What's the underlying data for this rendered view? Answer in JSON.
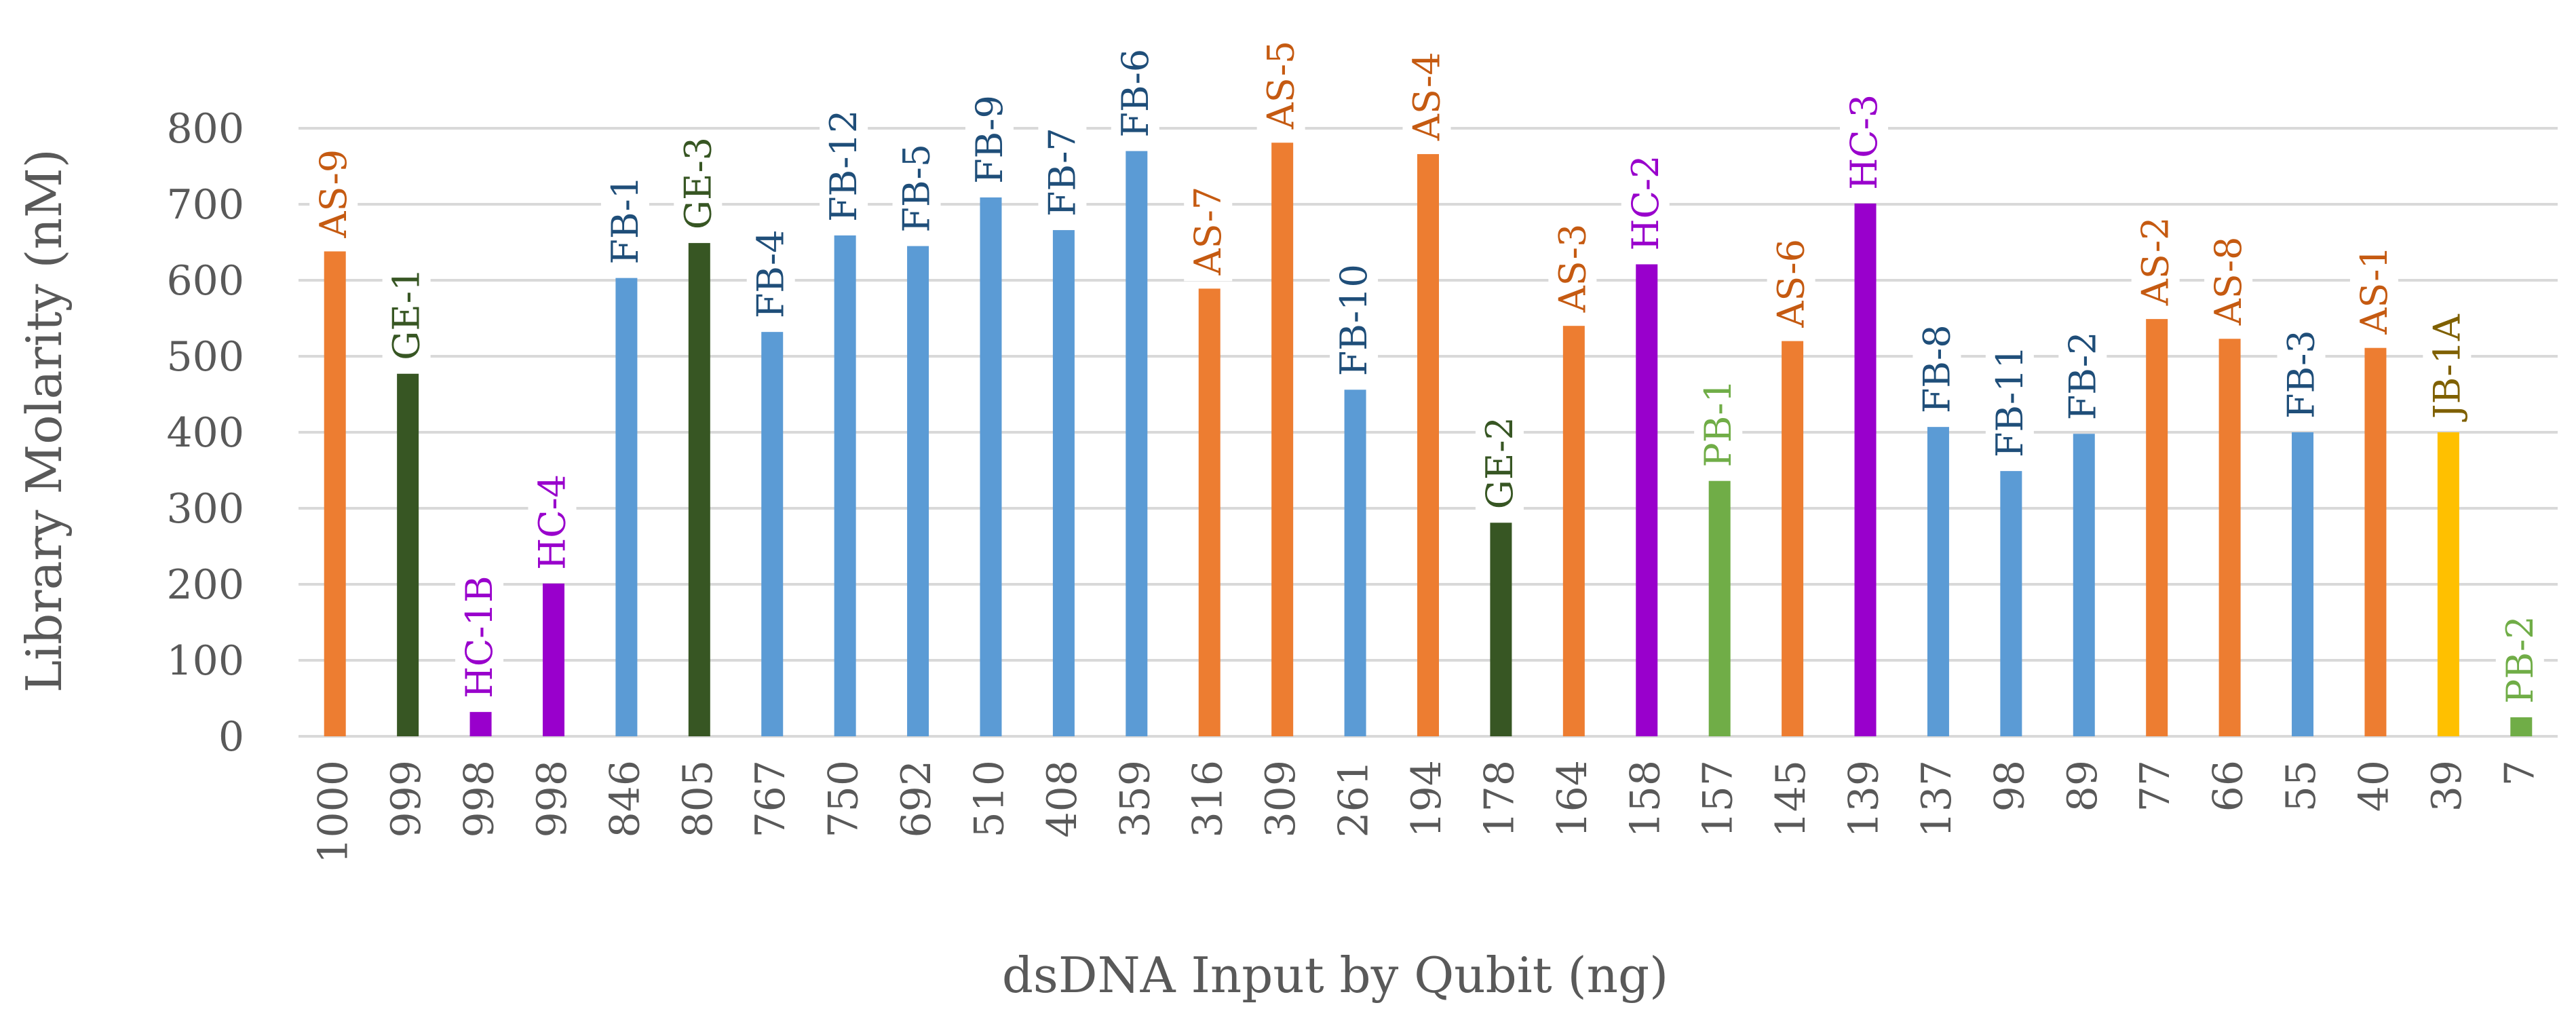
{
  "chart_data": {
    "type": "bar",
    "title": "",
    "xlabel": "dsDNA Input by Qubit (ng)",
    "ylabel": "Library Molarity (nM)",
    "ylim": [
      0,
      800
    ],
    "yticks": [
      0,
      100,
      200,
      300,
      400,
      500,
      600,
      700,
      800
    ],
    "grid": true,
    "legend": "none",
    "categories": [
      "1000",
      "999",
      "998",
      "998",
      "846",
      "805",
      "767",
      "750",
      "692",
      "510",
      "408",
      "359",
      "316",
      "309",
      "261",
      "194",
      "178",
      "164",
      "158",
      "157",
      "145",
      "139",
      "137",
      "98",
      "89",
      "77",
      "66",
      "55",
      "40",
      "39",
      "7"
    ],
    "values": [
      638,
      477,
      32,
      201,
      603,
      649,
      532,
      659,
      645,
      709,
      666,
      770,
      589,
      781,
      456,
      766,
      281,
      540,
      621,
      336,
      520,
      701,
      407,
      349,
      398,
      549,
      523,
      400,
      511,
      400,
      25
    ],
    "labels": [
      "AS-9",
      "GE-1",
      "HC-1B",
      "HC-4",
      "FB-1",
      "GE-3",
      "FB-4",
      "FB-12",
      "FB-5",
      "FB-9",
      "FB-7",
      "FB-6",
      "AS-7",
      "AS-5",
      "FB-10",
      "AS-4",
      "GE-2",
      "AS-3",
      "HC-2",
      "PB-1",
      "AS-6",
      "HC-3",
      "FB-8",
      "FB-11",
      "FB-2",
      "AS-2",
      "AS-8",
      "FB-3",
      "AS-1",
      "JB-1A",
      "PB-2"
    ],
    "groups": [
      "AS",
      "GE",
      "HC",
      "HC",
      "FB",
      "GE",
      "FB",
      "FB",
      "FB",
      "FB",
      "FB",
      "FB",
      "AS",
      "AS",
      "FB",
      "AS",
      "GE",
      "AS",
      "HC",
      "PB",
      "AS",
      "HC",
      "FB",
      "FB",
      "FB",
      "AS",
      "AS",
      "FB",
      "AS",
      "JB",
      "PB"
    ]
  },
  "colors": {
    "AS": {
      "bar": "#ED7D31",
      "label": "#C55A11"
    },
    "GE": {
      "bar": "#375623",
      "label": "#375623"
    },
    "HC": {
      "bar": "#9900CC",
      "label": "#9900CC"
    },
    "FB": {
      "bar": "#5B9BD5",
      "label": "#1F4E79"
    },
    "PB": {
      "bar": "#70AD47",
      "label": "#70AD47"
    },
    "JB": {
      "bar": "#FFC000",
      "label": "#7F6000"
    },
    "grid": "#D9D9D9",
    "text": "#595959"
  }
}
